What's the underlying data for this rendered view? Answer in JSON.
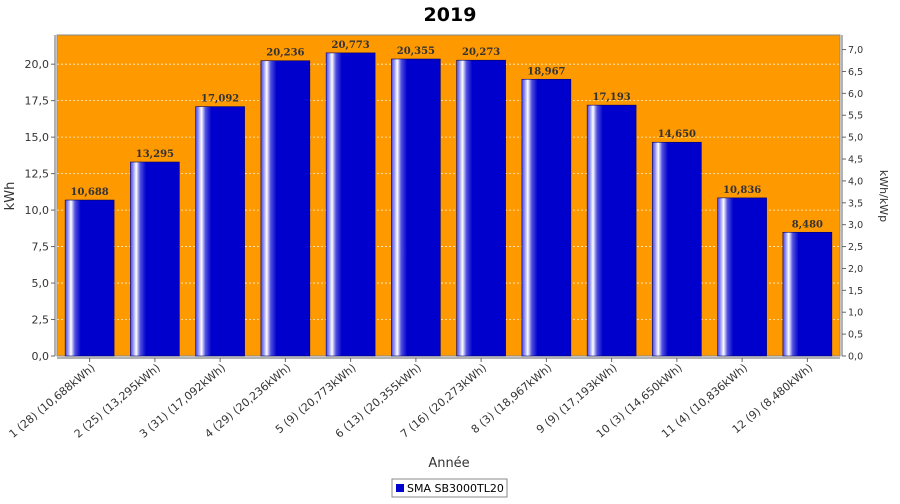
{
  "chart_data": {
    "type": "bar",
    "title": "2019",
    "xlabel": "Année",
    "ylabel": "kWh",
    "ylabel_right": "kWh/kWp",
    "categories": [
      "1 (28)  (10,688kWh)",
      "2 (25)  (13,295kWh)",
      "3 (31)  (17,092kWh)",
      "4 (29)  (20,236kWh)",
      "5 (9)  (20,773kWh)",
      "6 (13)  (20,355kWh)",
      "7 (16)  (20,273kWh)",
      "8 (3)  (18,967kWh)",
      "9 (9)  (17,193kWh)",
      "10 (3)  (14,650kWh)",
      "11 (4)  (10,836kWh)",
      "12 (9)  (8,480kWh)"
    ],
    "series": [
      {
        "name": "SMA SB3000TL20",
        "values": [
          10.688,
          13.295,
          17.092,
          20.236,
          20.773,
          20.355,
          20.273,
          18.967,
          17.193,
          14.65,
          10.836,
          8.48
        ],
        "value_labels": [
          "10,688",
          "13,295",
          "17,092",
          "20,236",
          "20,773",
          "20,355",
          "20,273",
          "18,967",
          "17,193",
          "14,650",
          "10,836",
          "8,480"
        ]
      }
    ],
    "ylim": [
      0,
      22
    ],
    "yticks": [
      0,
      2.5,
      5,
      7.5,
      10,
      12.5,
      15,
      17.5,
      20
    ],
    "ytick_labels": [
      "0,0",
      "2,5",
      "5,0",
      "7,5",
      "10,0",
      "12,5",
      "15,0",
      "17,5",
      "20,0"
    ],
    "ylim_right": [
      0,
      7.3333
    ],
    "yticks_right": [
      0,
      0.5,
      1,
      1.5,
      2,
      2.5,
      3,
      3.5,
      4,
      4.5,
      5,
      5.5,
      6,
      6.5,
      7
    ],
    "ytick_labels_right": [
      "0,0",
      "0,5",
      "1,0",
      "1,5",
      "2,0",
      "2,5",
      "3,0",
      "3,5",
      "4,0",
      "4,5",
      "5,0",
      "5,5",
      "6,0",
      "6,5",
      "7,0"
    ],
    "grid": true,
    "legend_position": "bottom-center",
    "colors": {
      "plot_background": "#ff9900",
      "bar": "#0000cc",
      "bar_highlight": "#ffffff",
      "grid": "#ffffff"
    }
  }
}
